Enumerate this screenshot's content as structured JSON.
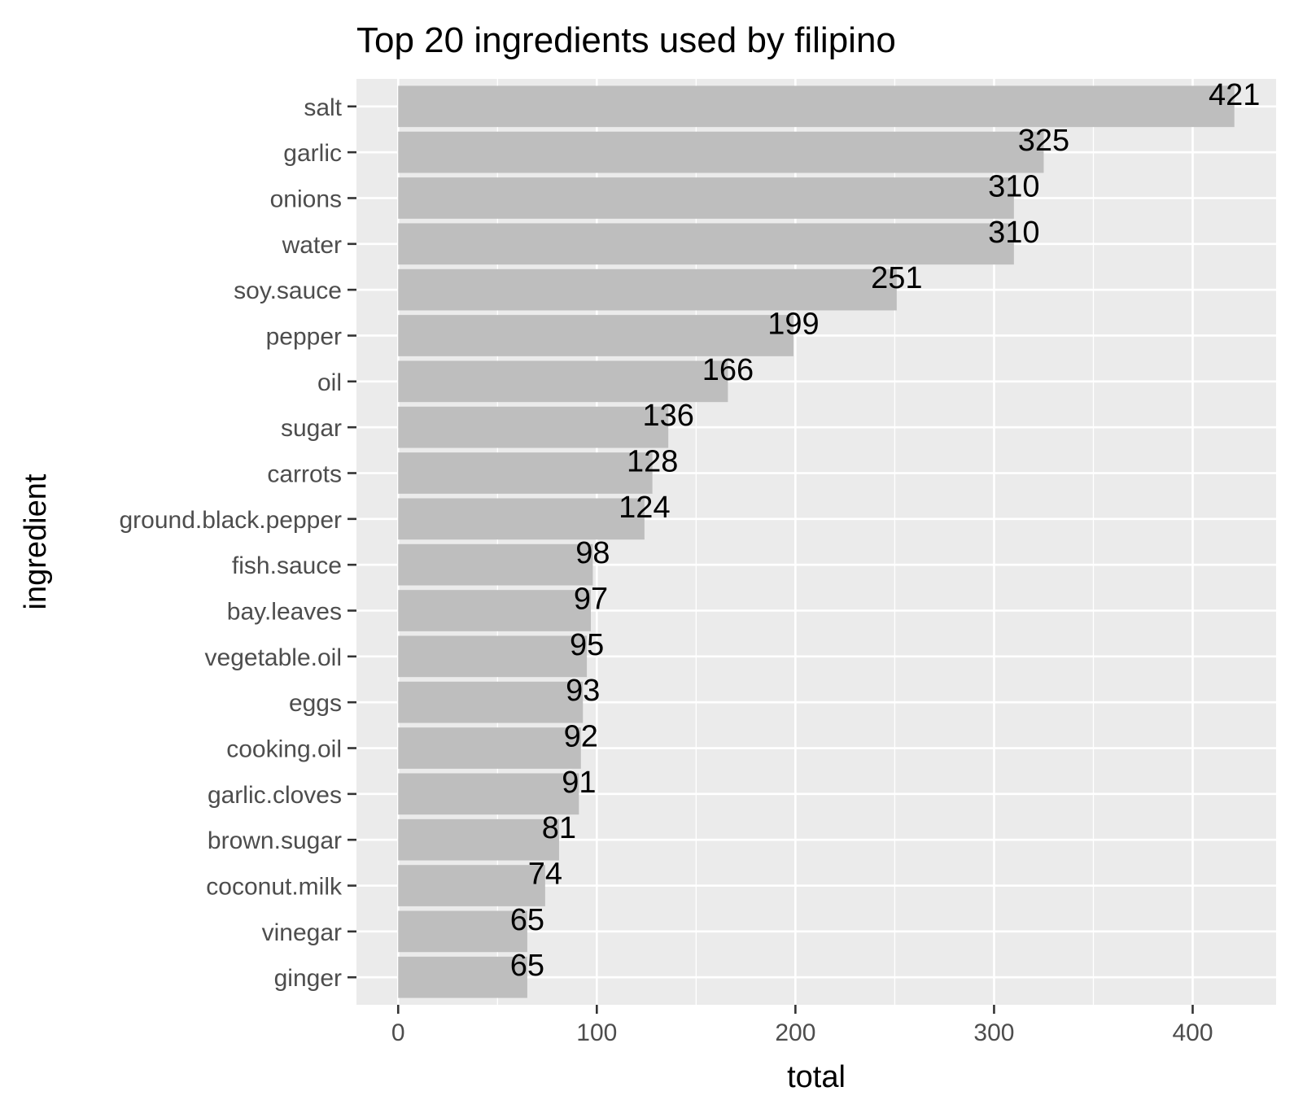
{
  "chart_data": {
    "type": "bar",
    "orientation": "horizontal",
    "title": "Top 20 ingredients used by filipino",
    "xlabel": "total",
    "ylabel": "ingredient",
    "categories": [
      "salt",
      "garlic",
      "onions",
      "water",
      "soy.sauce",
      "pepper",
      "oil",
      "sugar",
      "carrots",
      "ground.black.pepper",
      "fish.sauce",
      "bay.leaves",
      "vegetable.oil",
      "eggs",
      "cooking.oil",
      "garlic.cloves",
      "brown.sugar",
      "coconut.milk",
      "vinegar",
      "ginger"
    ],
    "values": [
      421,
      325,
      310,
      310,
      251,
      199,
      166,
      136,
      128,
      124,
      98,
      97,
      95,
      93,
      92,
      91,
      81,
      74,
      65,
      65
    ],
    "x_ticks": [
      0,
      100,
      200,
      300,
      400
    ],
    "x_tick_labels": [
      "0",
      "100",
      "200",
      "300",
      "400"
    ],
    "xlim": [
      -21,
      442
    ],
    "grid": true,
    "legend": "none",
    "colors": {
      "bar": "#bebebe",
      "panel": "#ebebeb",
      "grid": "#ffffff",
      "tick_text": "#4d4d4d",
      "text": "#000000"
    }
  }
}
